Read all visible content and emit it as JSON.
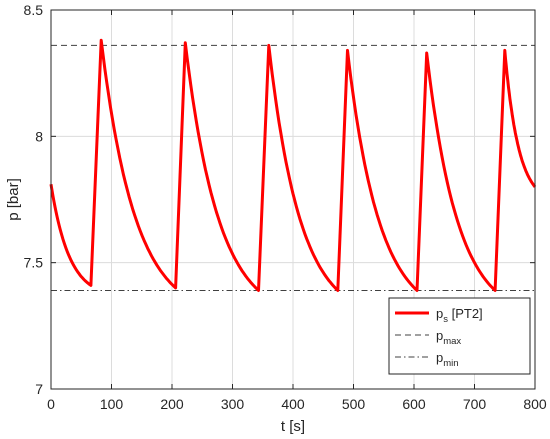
{
  "chart_data": {
    "type": "line",
    "xlabel": "t [s]",
    "ylabel": "p [bar]",
    "xlim": [
      0,
      800
    ],
    "ylim": [
      7,
      8.5
    ],
    "xticks": [
      0,
      100,
      200,
      300,
      400,
      500,
      600,
      700,
      800
    ],
    "yticks": [
      7,
      7.5,
      8,
      8.5
    ],
    "xtick_labels": [
      "0",
      "100",
      "200",
      "300",
      "400",
      "500",
      "600",
      "700",
      "800"
    ],
    "ytick_labels": [
      "7",
      "7.5",
      "8",
      "8.5"
    ],
    "grid": true,
    "legend_position": "bottom-right",
    "series": [
      {
        "name": "p",
        "name_sub": "s",
        "name_suffix": " [PT2]",
        "style": "solid",
        "color": "#ff0000",
        "peaks": [
          [
            0,
            7.81
          ],
          [
            83,
            8.38
          ],
          [
            222,
            8.37
          ],
          [
            360,
            8.36
          ],
          [
            490,
            8.34
          ],
          [
            621,
            8.33
          ],
          [
            750,
            8.34
          ]
        ],
        "troughs": [
          [
            66,
            7.41
          ],
          [
            206,
            7.4
          ],
          [
            343,
            7.39
          ],
          [
            474,
            7.39
          ],
          [
            605,
            7.39
          ],
          [
            734,
            7.39
          ],
          [
            800,
            7.8
          ]
        ]
      },
      {
        "name": "p",
        "name_sub": "max",
        "style": "dashed",
        "color": "#404040",
        "value": 8.36
      },
      {
        "name": "p",
        "name_sub": "min",
        "style": "dashdot",
        "color": "#404040",
        "value": 7.39
      }
    ]
  }
}
